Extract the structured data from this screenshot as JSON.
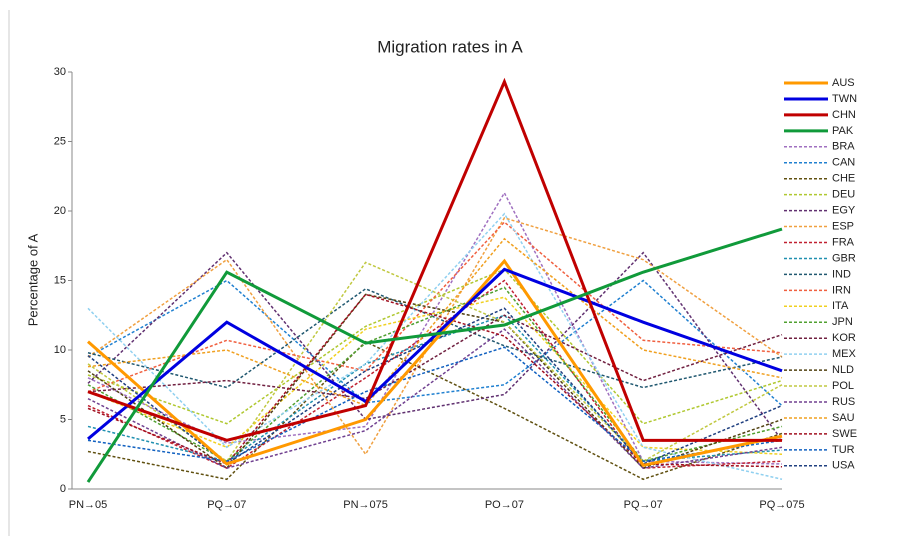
{
  "chart_data": {
    "type": "line",
    "title": "Migration rates in A",
    "y_label": "Percentage of A",
    "categories": [
      "PN→05",
      "PQ→07",
      "PN→075",
      "PO→07",
      "PQ→07",
      "PQ→075"
    ],
    "ylim": [
      0,
      30
    ],
    "yticks": [
      0,
      5,
      10,
      15,
      20,
      25,
      30
    ],
    "grid": false,
    "legend": "right",
    "series": [
      {
        "name": "AUS",
        "color": "#ff9900",
        "style": "solid",
        "values": [
          10.6,
          1.8,
          5.0,
          16.4,
          1.7,
          3.8
        ]
      },
      {
        "name": "TWN",
        "color": "#0000e0",
        "style": "solid",
        "values": [
          3.6,
          12.0,
          6.3,
          15.8,
          12.0,
          8.5
        ]
      },
      {
        "name": "CHN",
        "color": "#c00000",
        "style": "solid",
        "values": [
          7.0,
          3.5,
          6.0,
          29.3,
          3.5,
          3.5
        ]
      },
      {
        "name": "PAK",
        "color": "#109a3a",
        "style": "solid",
        "values": [
          0.5,
          15.6,
          10.5,
          11.8,
          15.6,
          18.7
        ]
      },
      {
        "name": "BRA",
        "color": "#a070c0",
        "style": "dashed",
        "values": [
          8.0,
          3.3,
          4.5,
          21.3,
          2.0,
          1.8
        ]
      },
      {
        "name": "CAN",
        "color": "#2080d0",
        "style": "dashed",
        "values": [
          9.5,
          15.0,
          6.2,
          7.5,
          15.0,
          6.0
        ]
      },
      {
        "name": "CHE",
        "color": "#605010",
        "style": "dashed",
        "values": [
          2.7,
          0.7,
          10.6,
          5.8,
          0.7,
          4.0
        ]
      },
      {
        "name": "DEU",
        "color": "#b0c830",
        "style": "dashed",
        "values": [
          8.2,
          4.7,
          11.7,
          15.8,
          4.7,
          7.8
        ]
      },
      {
        "name": "EGY",
        "color": "#603070",
        "style": "dashed",
        "values": [
          7.6,
          17.0,
          5.0,
          6.8,
          17.0,
          3.5
        ]
      },
      {
        "name": "ESP",
        "color": "#f0a040",
        "style": "dashed",
        "values": [
          9.5,
          16.5,
          2.5,
          19.5,
          16.5,
          9.5
        ]
      },
      {
        "name": "FRA",
        "color": "#c02030",
        "style": "dashed",
        "values": [
          6.0,
          1.5,
          8.0,
          15.0,
          1.5,
          2.0
        ]
      },
      {
        "name": "GBR",
        "color": "#2090b0",
        "style": "dashed",
        "values": [
          4.5,
          2.0,
          9.0,
          12.5,
          2.0,
          2.8
        ]
      },
      {
        "name": "IND",
        "color": "#205870",
        "style": "dashed",
        "values": [
          9.8,
          7.3,
          14.4,
          10.3,
          7.3,
          9.5
        ]
      },
      {
        "name": "IRN",
        "color": "#f06040",
        "style": "dashed",
        "values": [
          7.0,
          10.7,
          8.5,
          19.2,
          10.7,
          9.8
        ]
      },
      {
        "name": "ITA",
        "color": "#f0d020",
        "style": "dashed",
        "values": [
          7.0,
          3.0,
          11.5,
          13.8,
          3.0,
          2.5
        ]
      },
      {
        "name": "JPN",
        "color": "#50a030",
        "style": "dashed",
        "values": [
          7.5,
          2.0,
          10.5,
          14.5,
          2.0,
          4.5
        ]
      },
      {
        "name": "KOR",
        "color": "#702040",
        "style": "dashed",
        "values": [
          7.0,
          7.8,
          6.5,
          12.5,
          7.8,
          11.1
        ]
      },
      {
        "name": "MEX",
        "color": "#90d0f0",
        "style": "dashed",
        "values": [
          13.0,
          3.0,
          9.0,
          19.8,
          3.0,
          0.7
        ]
      },
      {
        "name": "NLD",
        "color": "#504010",
        "style": "dashed",
        "values": [
          8.5,
          1.5,
          14.0,
          12.0,
          1.5,
          5.0
        ]
      },
      {
        "name": "POL",
        "color": "#c0c840",
        "style": "dashed",
        "values": [
          9.0,
          2.0,
          16.3,
          12.0,
          2.0,
          7.5
        ]
      },
      {
        "name": "RUS",
        "color": "#704090",
        "style": "dashed",
        "values": [
          6.5,
          1.5,
          4.2,
          11.5,
          1.5,
          3.0
        ]
      },
      {
        "name": "SAU",
        "color": "#f0a020",
        "style": "dashed",
        "values": [
          8.8,
          10.0,
          6.0,
          18.0,
          10.0,
          8.0
        ]
      },
      {
        "name": "SWE",
        "color": "#a01020",
        "style": "dashed",
        "values": [
          5.8,
          1.8,
          14.0,
          11.0,
          1.8,
          1.6
        ]
      },
      {
        "name": "TUR",
        "color": "#1060c0",
        "style": "dashed",
        "values": [
          3.5,
          2.0,
          7.0,
          10.2,
          2.0,
          3.5
        ]
      },
      {
        "name": "USA",
        "color": "#204080",
        "style": "dashed",
        "values": [
          9.6,
          1.8,
          8.5,
          13.0,
          1.8,
          6.0
        ]
      }
    ]
  }
}
